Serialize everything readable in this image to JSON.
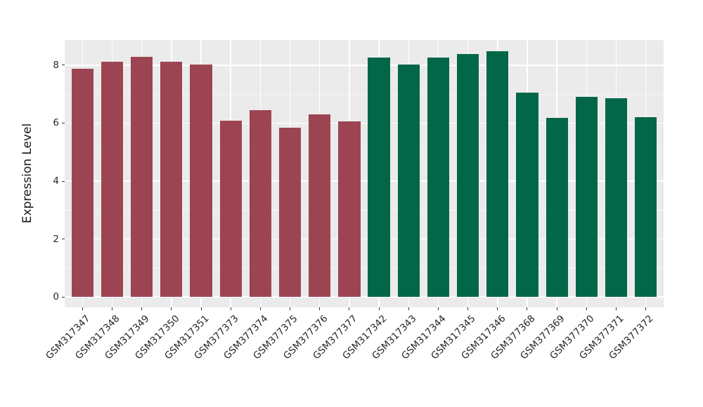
{
  "chart_data": {
    "type": "bar",
    "title": "",
    "xlabel": "",
    "ylabel": "Expression Level",
    "categories": [
      "GSM317347",
      "GSM317348",
      "GSM317349",
      "GSM317350",
      "GSM317351",
      "GSM377373",
      "GSM377374",
      "GSM377375",
      "GSM377376",
      "GSM377377",
      "GSM317342",
      "GSM317343",
      "GSM317344",
      "GSM317345",
      "GSM317346",
      "GSM377368",
      "GSM377369",
      "GSM377370",
      "GSM377371",
      "GSM377372"
    ],
    "values": [
      7.87,
      8.13,
      8.3,
      8.13,
      8.03,
      6.08,
      6.45,
      5.85,
      6.3,
      6.06,
      8.26,
      8.02,
      8.26,
      8.38,
      8.48,
      7.05,
      6.18,
      6.9,
      6.86,
      6.2
    ],
    "bar_colors": [
      "#9D4452",
      "#9D4452",
      "#9D4452",
      "#9D4452",
      "#9D4452",
      "#9D4452",
      "#9D4452",
      "#9D4452",
      "#9D4452",
      "#9D4452",
      "#016748",
      "#016748",
      "#016748",
      "#016748",
      "#016748",
      "#016748",
      "#016748",
      "#016748",
      "#016748",
      "#016748"
    ],
    "group_colors": {
      "left_group": "#9D4452",
      "right_group": "#016748"
    },
    "yticks": [
      0,
      2,
      4,
      6,
      8
    ],
    "ylim": [
      -0.36,
      8.87
    ],
    "legend": "none",
    "grid": {
      "on": true,
      "panel_bg": "#EBEBEB",
      "major_color": "#FFFFFF",
      "minor_color": "rgba(255,255,255,0.55)",
      "minor_yticks": [
        1,
        3,
        5,
        7
      ]
    },
    "bar_width_ratio": 0.74
  }
}
